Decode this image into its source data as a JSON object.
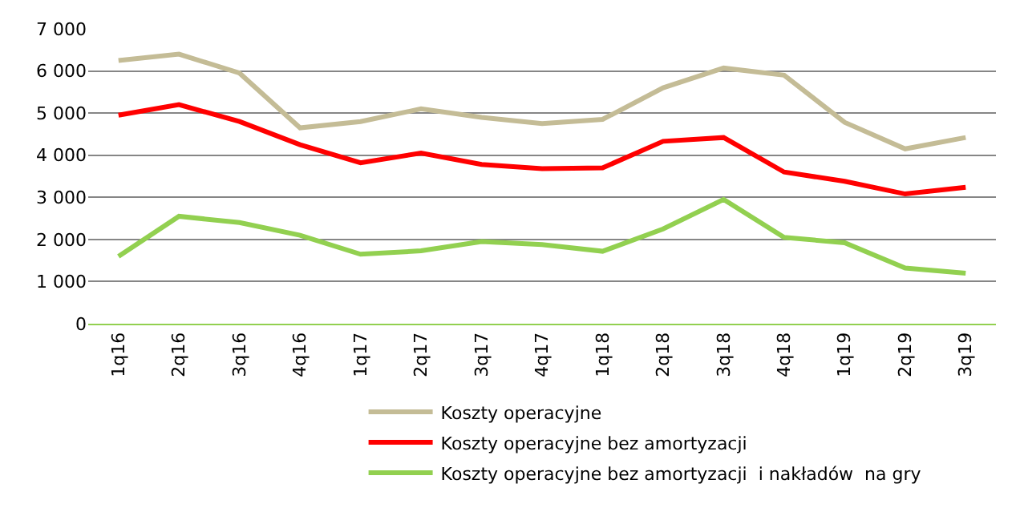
{
  "chart_data": {
    "type": "line",
    "categories": [
      "1q16",
      "2q16",
      "3q16",
      "4q16",
      "1q17",
      "2q17",
      "3q17",
      "4q17",
      "1q18",
      "2q18",
      "3q18",
      "4q18",
      "1q19",
      "2q19",
      "3q19"
    ],
    "series": [
      {
        "name": "Koszty operacyjne",
        "color": "#c4bc96",
        "values": [
          6250,
          6400,
          5950,
          4650,
          4800,
          5100,
          4900,
          4750,
          4850,
          5600,
          6070,
          5900,
          4780,
          4150,
          4420
        ]
      },
      {
        "name": "Koszty operacyjne bez amortyzacji",
        "color": "#ff0000",
        "values": [
          4950,
          5200,
          4800,
          4250,
          3820,
          4050,
          3780,
          3680,
          3700,
          4330,
          4420,
          3600,
          3380,
          3080,
          3240
        ]
      },
      {
        "name": "Koszty operacyjne bez amortyzacji  i nakładów  na gry",
        "color": "#92d050",
        "values": [
          1600,
          2550,
          2400,
          2100,
          1650,
          1730,
          1950,
          1880,
          1720,
          2250,
          2950,
          2050,
          1920,
          1320,
          1200
        ]
      }
    ],
    "ylim": [
      0,
      7000
    ],
    "yticks": [
      {
        "value": 0,
        "label": "0"
      },
      {
        "value": 1000,
        "label": "1 000"
      },
      {
        "value": 2000,
        "label": "2 000"
      },
      {
        "value": 3000,
        "label": "3 000"
      },
      {
        "value": 4000,
        "label": "4 000"
      },
      {
        "value": 5000,
        "label": "5 000"
      },
      {
        "value": 6000,
        "label": "6 000"
      },
      {
        "value": 7000,
        "label": "7 000"
      }
    ],
    "grid": "y",
    "legend": "bottom",
    "marker": "none",
    "line_style": "solid"
  }
}
